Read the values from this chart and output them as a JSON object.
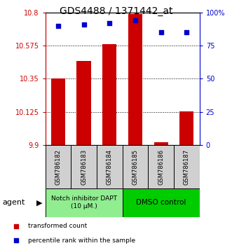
{
  "title": "GDS4488 / 1371442_at",
  "samples": [
    "GSM786182",
    "GSM786183",
    "GSM786184",
    "GSM786185",
    "GSM786186",
    "GSM786187"
  ],
  "red_values": [
    10.35,
    10.47,
    10.585,
    10.79,
    9.92,
    10.13
  ],
  "blue_values": [
    90,
    91,
    92,
    94,
    85,
    85
  ],
  "ylim_left": [
    9.9,
    10.8
  ],
  "ylim_right": [
    0,
    100
  ],
  "yticks_left": [
    9.9,
    10.125,
    10.35,
    10.575,
    10.8
  ],
  "ytick_labels_left": [
    "9.9",
    "10.125",
    "10.35",
    "10.575",
    "10.8"
  ],
  "yticks_right": [
    0,
    25,
    50,
    75,
    100
  ],
  "ytick_labels_right": [
    "0",
    "25",
    "50",
    "75",
    "100%"
  ],
  "group1_label": "Notch inhibitor DAPT\n(10 μM.)",
  "group2_label": "DMSO control",
  "group1_indices": [
    0,
    1,
    2
  ],
  "group2_indices": [
    3,
    4,
    5
  ],
  "group1_color": "#90EE90",
  "group2_color": "#00CC00",
  "bar_color": "#CC0000",
  "dot_color": "#0000CC",
  "bar_bottom": 9.9,
  "legend_red": "transformed count",
  "legend_blue": "percentile rank within the sample",
  "agent_label": "agent",
  "title_fontsize": 10,
  "tick_fontsize": 7,
  "sample_fontsize": 6,
  "legend_fontsize": 6.5,
  "agent_fontsize": 8
}
